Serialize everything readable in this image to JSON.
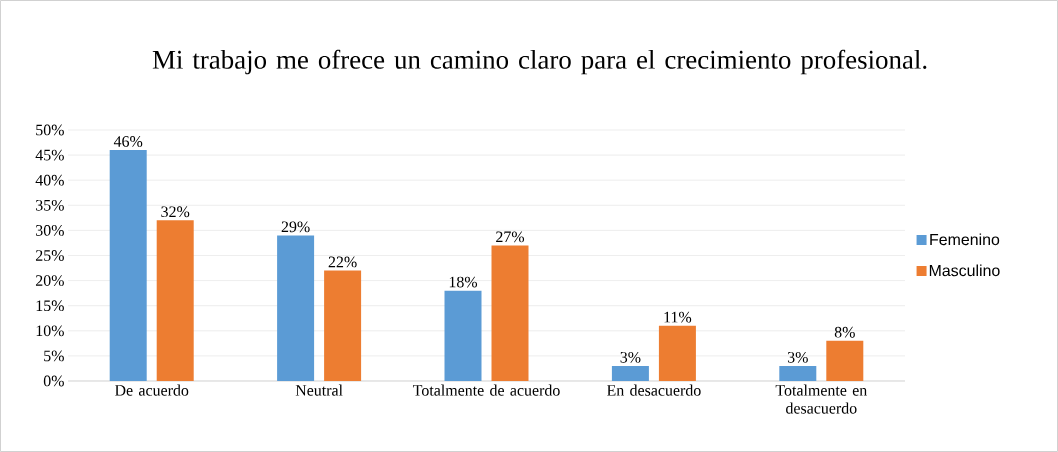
{
  "chart_data": {
    "type": "bar",
    "title": "Mi trabajo  me ofrece un camino claro para el crecimiento profesional.",
    "categories": [
      "De acuerdo",
      "Neutral",
      "Totalmente de acuerdo",
      "En desacuerdo",
      "Totalmente en desacuerdo"
    ],
    "series": [
      {
        "name": "Femenino",
        "color": "#5b9bd5",
        "values": [
          46,
          29,
          18,
          3,
          3
        ],
        "value_labels": [
          "46%",
          "29%",
          "18%",
          "3%",
          "3%"
        ]
      },
      {
        "name": "Masculino",
        "color": "#ed7d31",
        "values": [
          32,
          22,
          27,
          11,
          8
        ],
        "value_labels": [
          "32%",
          "22%",
          "27%",
          "11%",
          "8%"
        ]
      }
    ],
    "ylim": [
      0,
      50
    ],
    "yticks": [
      {
        "value": 0,
        "label": "0%"
      },
      {
        "value": 5,
        "label": "5%"
      },
      {
        "value": 10,
        "label": "10%"
      },
      {
        "value": 15,
        "label": "15%"
      },
      {
        "value": 20,
        "label": "20%"
      },
      {
        "value": 25,
        "label": "25%"
      },
      {
        "value": 30,
        "label": "30%"
      },
      {
        "value": 35,
        "label": "35%"
      },
      {
        "value": 40,
        "label": "40%"
      },
      {
        "value": 45,
        "label": "45%"
      },
      {
        "value": 50,
        "label": "50%"
      }
    ],
    "grid": "y",
    "legend": "right"
  }
}
